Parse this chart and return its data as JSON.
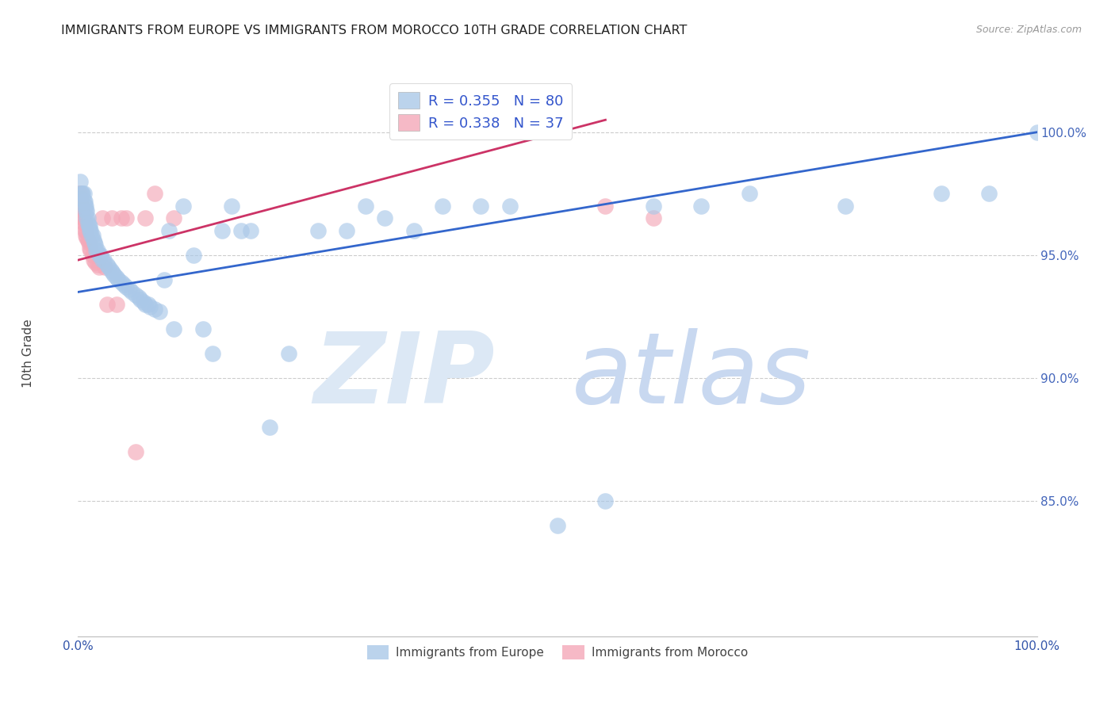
{
  "title": "IMMIGRANTS FROM EUROPE VS IMMIGRANTS FROM MOROCCO 10TH GRADE CORRELATION CHART",
  "source": "Source: ZipAtlas.com",
  "ylabel": "10th Grade",
  "ytick_labels": [
    "100.0%",
    "95.0%",
    "90.0%",
    "85.0%"
  ],
  "ytick_values": [
    1.0,
    0.95,
    0.9,
    0.85
  ],
  "xlim": [
    0.0,
    1.0
  ],
  "ylim": [
    0.795,
    1.025
  ],
  "legend_blue_r": "R = 0.355",
  "legend_blue_n": "N = 80",
  "legend_pink_r": "R = 0.338",
  "legend_pink_n": "N = 37",
  "legend_label_blue": "Immigrants from Europe",
  "legend_label_pink": "Immigrants from Morocco",
  "blue_color": "#aac8e8",
  "pink_color": "#f4a8b8",
  "trendline_blue": "#3366cc",
  "trendline_pink": "#cc3366",
  "watermark_zip_color": "#dce8f5",
  "watermark_atlas_color": "#c8d8f0",
  "blue_scatter_x": [
    0.002,
    0.003,
    0.004,
    0.005,
    0.006,
    0.006,
    0.007,
    0.007,
    0.008,
    0.008,
    0.009,
    0.009,
    0.01,
    0.01,
    0.011,
    0.012,
    0.012,
    0.013,
    0.014,
    0.015,
    0.016,
    0.017,
    0.018,
    0.019,
    0.02,
    0.022,
    0.024,
    0.025,
    0.027,
    0.03,
    0.032,
    0.034,
    0.036,
    0.038,
    0.04,
    0.042,
    0.045,
    0.048,
    0.05,
    0.053,
    0.056,
    0.06,
    0.063,
    0.065,
    0.068,
    0.07,
    0.073,
    0.075,
    0.08,
    0.085,
    0.09,
    0.095,
    0.1,
    0.11,
    0.12,
    0.13,
    0.14,
    0.15,
    0.16,
    0.17,
    0.18,
    0.2,
    0.22,
    0.25,
    0.28,
    0.3,
    0.32,
    0.35,
    0.38,
    0.42,
    0.45,
    0.5,
    0.55,
    0.6,
    0.65,
    0.7,
    0.8,
    0.9,
    0.95,
    1.0
  ],
  "blue_scatter_y": [
    0.98,
    0.975,
    0.975,
    0.975,
    0.975,
    0.972,
    0.972,
    0.97,
    0.97,
    0.968,
    0.968,
    0.965,
    0.965,
    0.963,
    0.962,
    0.962,
    0.96,
    0.96,
    0.958,
    0.958,
    0.956,
    0.955,
    0.954,
    0.952,
    0.952,
    0.95,
    0.95,
    0.948,
    0.948,
    0.946,
    0.945,
    0.944,
    0.943,
    0.942,
    0.941,
    0.94,
    0.939,
    0.938,
    0.937,
    0.936,
    0.935,
    0.934,
    0.933,
    0.932,
    0.931,
    0.93,
    0.93,
    0.929,
    0.928,
    0.927,
    0.94,
    0.96,
    0.92,
    0.97,
    0.95,
    0.92,
    0.91,
    0.96,
    0.97,
    0.96,
    0.96,
    0.88,
    0.91,
    0.96,
    0.96,
    0.97,
    0.965,
    0.96,
    0.97,
    0.97,
    0.97,
    0.84,
    0.85,
    0.97,
    0.97,
    0.975,
    0.97,
    0.975,
    0.975,
    1.0
  ],
  "pink_scatter_x": [
    0.001,
    0.002,
    0.003,
    0.003,
    0.004,
    0.004,
    0.005,
    0.005,
    0.006,
    0.006,
    0.007,
    0.007,
    0.008,
    0.008,
    0.009,
    0.01,
    0.011,
    0.012,
    0.013,
    0.015,
    0.016,
    0.018,
    0.02,
    0.022,
    0.025,
    0.028,
    0.03,
    0.035,
    0.04,
    0.045,
    0.05,
    0.06,
    0.07,
    0.08,
    0.1,
    0.55,
    0.6
  ],
  "pink_scatter_y": [
    0.975,
    0.975,
    0.973,
    0.97,
    0.97,
    0.968,
    0.968,
    0.965,
    0.965,
    0.963,
    0.963,
    0.96,
    0.96,
    0.958,
    0.957,
    0.956,
    0.955,
    0.953,
    0.952,
    0.95,
    0.948,
    0.947,
    0.946,
    0.945,
    0.965,
    0.945,
    0.93,
    0.965,
    0.93,
    0.965,
    0.965,
    0.87,
    0.965,
    0.975,
    0.965,
    0.97,
    0.965
  ],
  "blue_trend_x": [
    0.0,
    1.0
  ],
  "blue_trend_y": [
    0.935,
    1.0
  ],
  "pink_trend_x": [
    0.0,
    0.55
  ],
  "pink_trend_y": [
    0.948,
    1.005
  ]
}
